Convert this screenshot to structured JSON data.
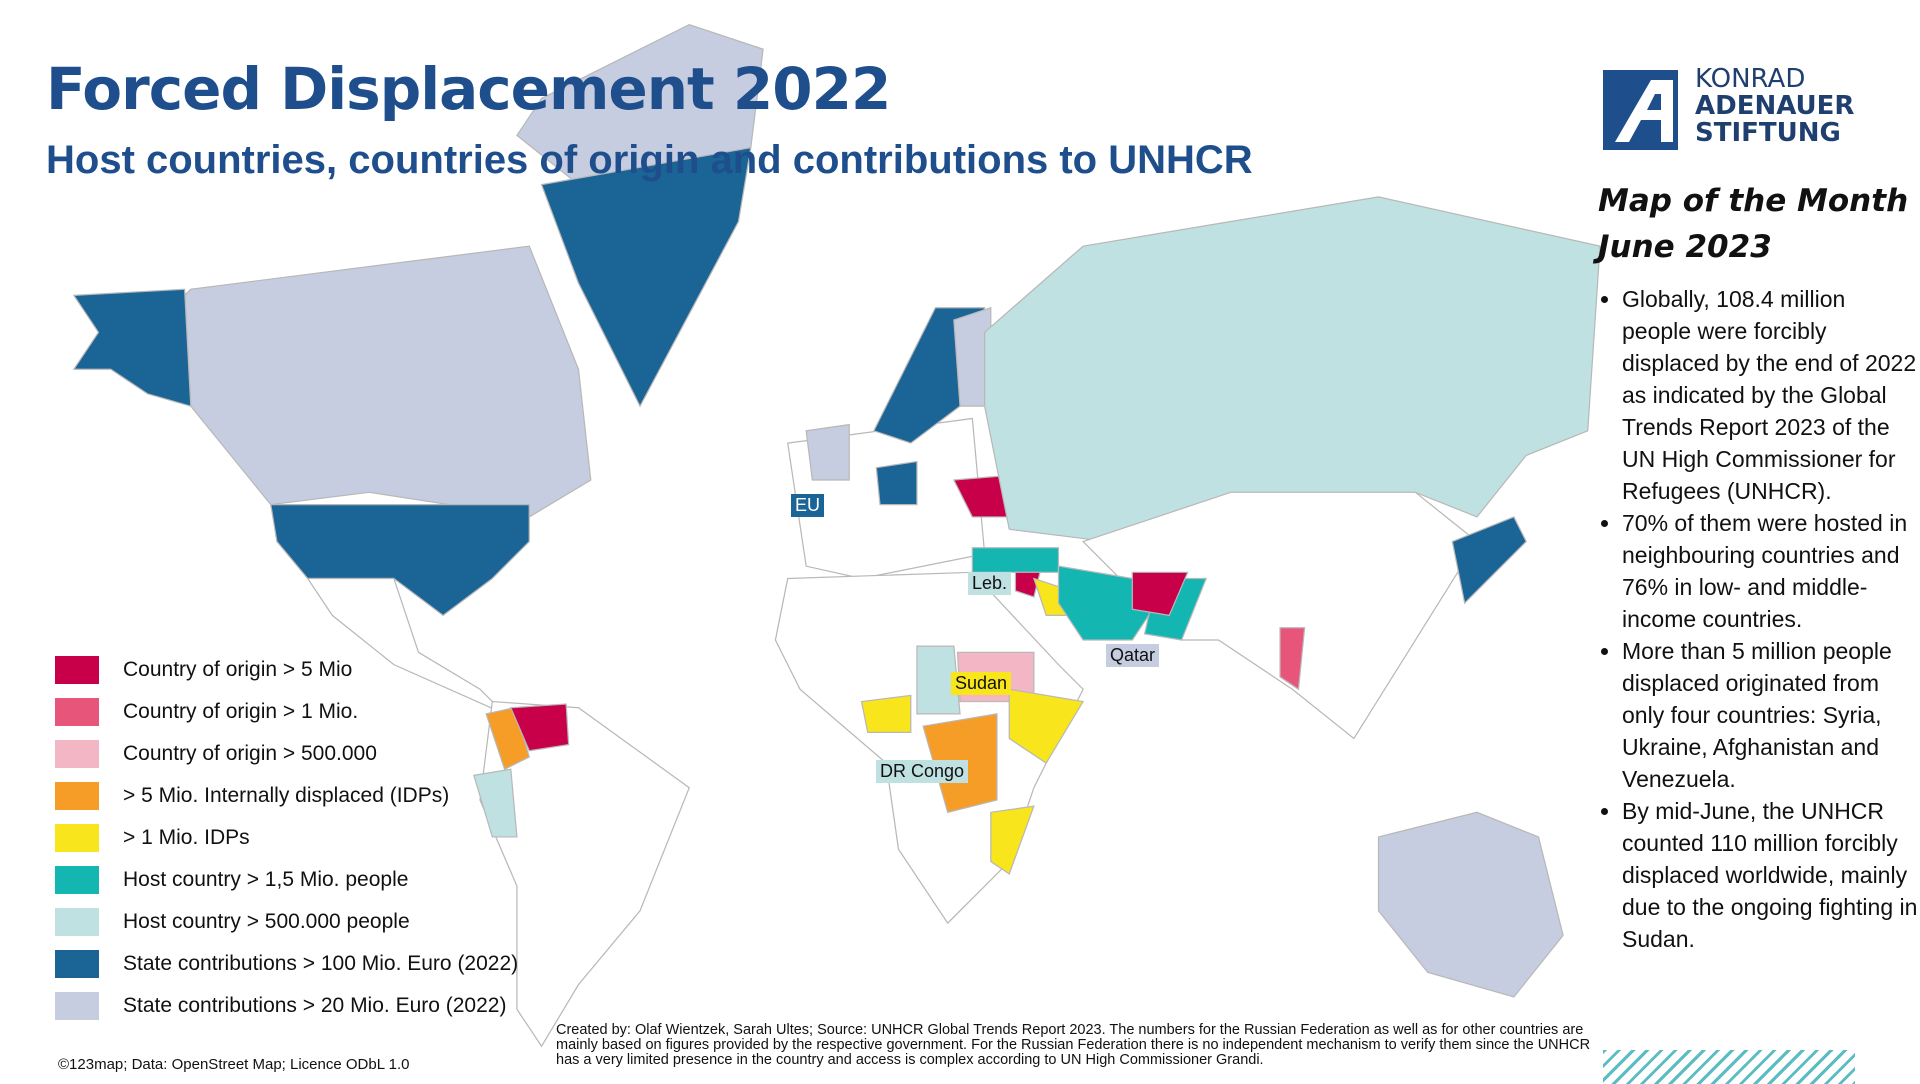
{
  "header": {
    "title": "Forced Displacement 2022",
    "subtitle": "Host countries, countries of origin and contributions to UNHCR"
  },
  "logo": {
    "lines": [
      "KONRAD",
      "ADENAUER",
      "STIFTUNG"
    ]
  },
  "sidebar": {
    "heading": [
      "Map of the Month",
      "June 2023"
    ],
    "bullets": [
      "Globally, 108.4 million people were forcibly displaced by the end of 2022 as indicated by the Global Trends Report 2023 of the UN High Commissioner for Refugees (UNHCR).",
      "70% of them were hosted in neighbouring countries and 76% in low- and middle-income countries.",
      "More than 5 million people displaced originated from only four countries: Syria, Ukraine, Afghanistan and Venezuela.",
      "By mid-June, the UNHCR counted 110 million forcibly displaced worldwide, mainly due to the ongoing fighting in Sudan."
    ]
  },
  "legend": {
    "items": [
      {
        "label": "Country of origin > 5 Mio",
        "color": "#c8004a"
      },
      {
        "label": "Country of origin > 1 Mio.",
        "color": "#e8557a"
      },
      {
        "label": "Country of origin > 500.000",
        "color": "#f3b6c4"
      },
      {
        "label": "> 5 Mio. Internally displaced (IDPs)",
        "color": "#f59d26"
      },
      {
        "label": "> 1 Mio. IDPs",
        "color": "#f8e51c"
      },
      {
        "label": "Host country > 1,5 Mio. people",
        "color": "#14b6b2"
      },
      {
        "label": "Host country > 500.000 people",
        "color": "#c0e1e1"
      },
      {
        "label": "State contributions > 100 Mio. Euro (2022)",
        "color": "#1b6496"
      },
      {
        "label": "State contributions > 20 Mio. Euro (2022)",
        "color": "#c6cde0"
      }
    ]
  },
  "map_labels": [
    "EU",
    "Leb.",
    "Qatar",
    "Sudan",
    "DR Congo"
  ],
  "credits": {
    "source": "Created by: Olaf Wientzek, Sarah Ultes; Source: UNHCR Global Trends Report 2023. The numbers for the Russian Federation as well as for other countries are mainly based on figures provided by the respective government. For the Russian Federation there is no independent mechanism to verify them since the UNHCR has a very limited presence in the country and access is complex according to UN High Commissioner Grandi.",
    "copyright": "©123map; Data: OpenStreet Map; Licence ODbL 1.0"
  }
}
